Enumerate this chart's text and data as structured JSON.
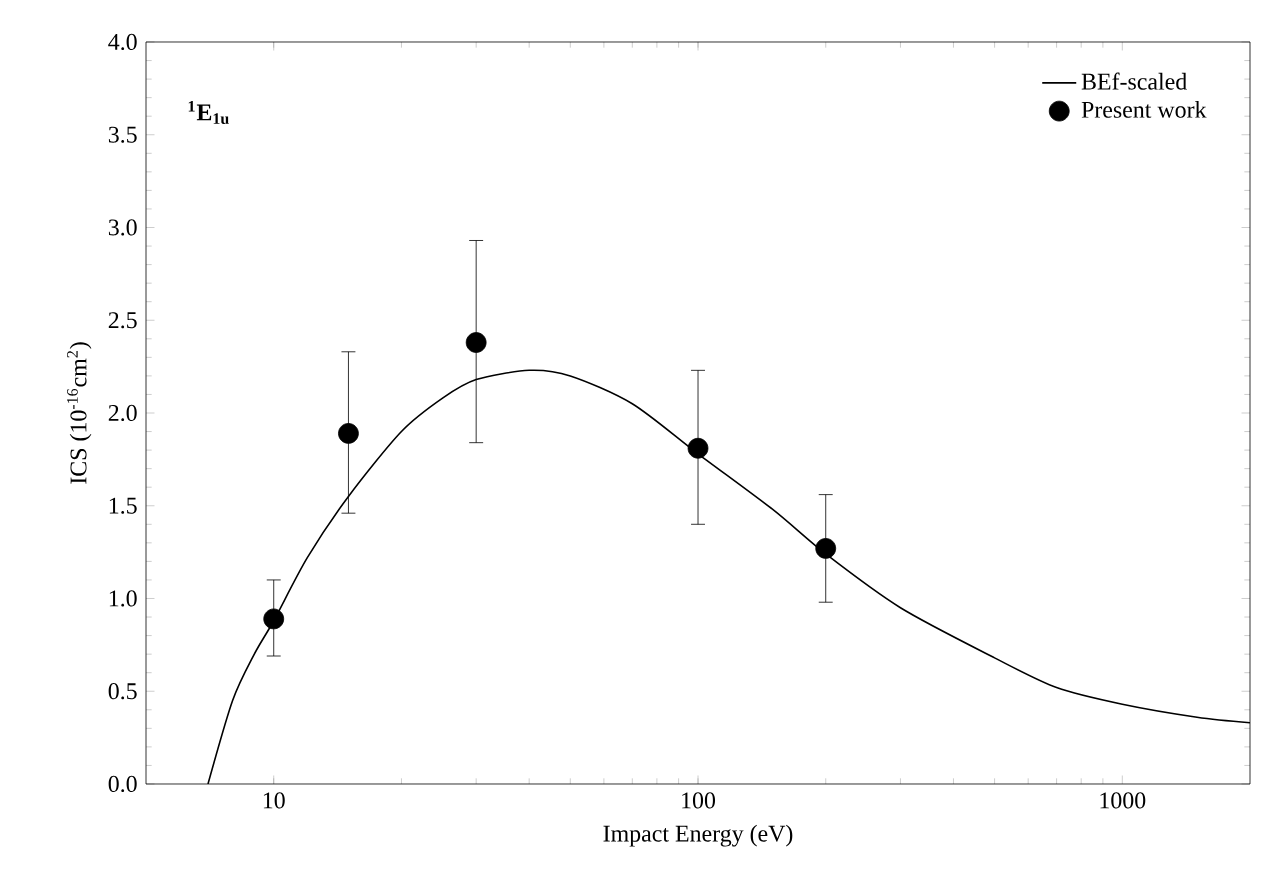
{
  "chart_data": {
    "type": "line",
    "xlabel": "Impact Energy (eV)",
    "ylabel": "ICS (10$^{-16}$cm$^{2}$)",
    "annotations": [
      "$^{1}$E$_{1u}$"
    ],
    "log": "x",
    "xlim": [
      5,
      2000
    ],
    "xticks": [
      10,
      100,
      1000
    ],
    "ylim": [
      0,
      4
    ],
    "yticks": [
      {
        "value": 0,
        "label": "0.0"
      },
      {
        "value": 0.5,
        "label": "0.5"
      },
      {
        "value": 1,
        "label": "1.0"
      },
      {
        "value": 1.5,
        "label": "1.5"
      },
      {
        "value": 2,
        "label": "2.0"
      },
      {
        "value": 2.5,
        "label": "2.5"
      },
      {
        "value": 3,
        "label": "3.0"
      },
      {
        "value": 3.5,
        "label": "3.5"
      },
      {
        "value": 4,
        "label": "4.0"
      }
    ],
    "legend": "top right",
    "series": [
      {
        "name": "BEf-scaled",
        "color": "#000000",
        "marker": "none",
        "line_style": "solid",
        "x": [
          7,
          8,
          9,
          10,
          12,
          15,
          20,
          25,
          30,
          40,
          50,
          70,
          100,
          150,
          200,
          300,
          500,
          700,
          1000,
          1500,
          2000
        ],
        "values": [
          0,
          0.45,
          0.7,
          0.88,
          1.22,
          1.55,
          1.9,
          2.08,
          2.18,
          2.23,
          2.2,
          2.05,
          1.78,
          1.48,
          1.24,
          0.95,
          0.68,
          0.52,
          0.43,
          0.36,
          0.33
        ]
      },
      {
        "name": "Present work",
        "type": "scatter",
        "color": "#000000",
        "marker": "circle",
        "x": [
          10,
          15,
          30,
          100,
          200
        ],
        "values": [
          0.89,
          1.89,
          2.38,
          1.81,
          1.27
        ],
        "errors": [
          [
            0.69,
            1.1
          ],
          [
            1.46,
            2.33
          ],
          [
            1.84,
            2.93
          ],
          [
            1.4,
            2.23
          ],
          [
            0.98,
            1.56
          ]
        ]
      }
    ]
  }
}
